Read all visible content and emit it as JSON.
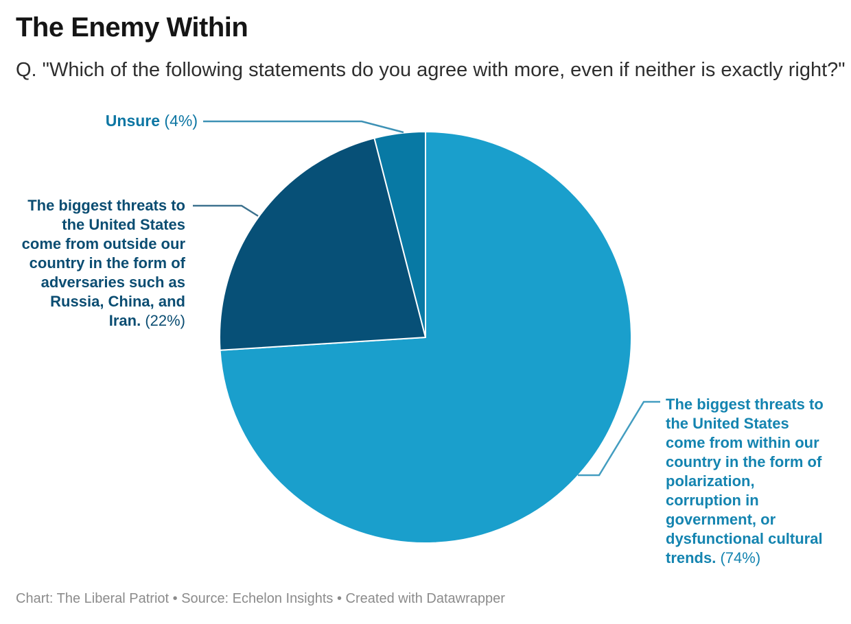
{
  "header": {
    "title": "The Enemy Within",
    "subtitle": "Q. \"Which of the following statements do you agree with more, even if neither is exactly right?\""
  },
  "chart_data": {
    "type": "pie",
    "title": "The Enemy Within",
    "question": "Q. \"Which of the following statements do you agree with more, even if neither is exactly right?\"",
    "start_angle": "top",
    "direction": "clockwise",
    "slices": [
      {
        "name": "within",
        "label": "The biggest threats to the United States come from within our country in the form of polarization, corruption in government, or dysfunctional cultural trends.",
        "value_pct": 74,
        "color": "#1A9FCC",
        "label_color": "#1484B0"
      },
      {
        "name": "outside",
        "label": "The biggest threats to the United States come from outside our country in the form of adversaries such as Russia, China, and Iran.",
        "value_pct": 22,
        "color": "#075077",
        "label_color": "#0B4D72"
      },
      {
        "name": "unsure",
        "label": "Unsure",
        "value_pct": 4,
        "color": "#0879A4",
        "label_color": "#0D76A3"
      }
    ]
  },
  "labels": {
    "unsure": {
      "lines": [
        "Unsure"
      ],
      "pct": "(4%)"
    },
    "outside": {
      "lines": [
        "The biggest threats to",
        "the United States",
        "come from outside our",
        "country in the form of",
        "adversaries such as",
        "Russia, China, and",
        "Iran."
      ],
      "pct": "(22%)"
    },
    "within": {
      "lines": [
        "The biggest threats to",
        "the United States",
        "come from within our",
        "country in the form of",
        "polarization,",
        "corruption in",
        "government, or",
        "dysfunctional cultural",
        "trends."
      ],
      "pct": "(74%)"
    }
  },
  "footer": {
    "text": "Chart: The Liberal Patriot • Source: Echelon Insights • Created with Datawrapper"
  }
}
